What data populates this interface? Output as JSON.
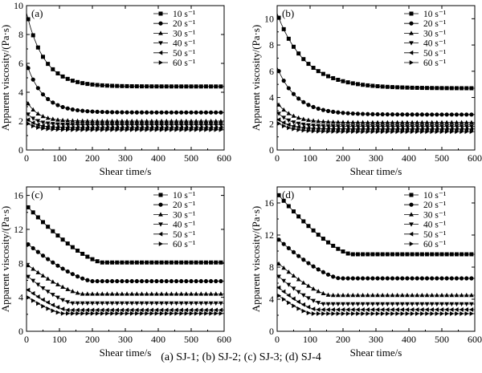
{
  "figure": {
    "caption": "(a) SJ-1; (b) SJ-2; (c) SJ-3; (d) SJ-4"
  },
  "chart_data": [
    {
      "type": "line",
      "panel_label": "(a)",
      "xlabel": "Shear time/s",
      "ylabel": "Apparent viscosity/(Pa·s)",
      "xlim": [
        0,
        600
      ],
      "ylim": [
        0,
        10
      ],
      "xticks": [
        0,
        100,
        200,
        300,
        400,
        500,
        600
      ],
      "yticks": [
        0,
        2,
        4,
        6,
        8,
        10
      ],
      "legend_position": "top-right",
      "grid": false,
      "series": [
        {
          "name": "10 s⁻¹",
          "marker": "square",
          "y0": 9.5,
          "yinf": 4.4,
          "tau": 55
        },
        {
          "name": "20 s⁻¹",
          "marker": "circle",
          "y0": 6.0,
          "yinf": 2.6,
          "tau": 50
        },
        {
          "name": "30 s⁻¹",
          "marker": "triangle-up",
          "y0": 3.4,
          "yinf": 2.0,
          "tau": 35
        },
        {
          "name": "40 s⁻¹",
          "marker": "triangle-down",
          "y0": 2.6,
          "yinf": 1.75,
          "tau": 30
        },
        {
          "name": "50 s⁻¹",
          "marker": "triangle-left",
          "y0": 2.2,
          "yinf": 1.55,
          "tau": 30
        },
        {
          "name": "60 s⁻¹",
          "marker": "triangle-right",
          "y0": 1.9,
          "yinf": 1.4,
          "tau": 30
        }
      ]
    },
    {
      "type": "line",
      "panel_label": "(b)",
      "xlabel": "Shear time/s",
      "ylabel": "Apparent viscosity/(Pa·s)",
      "xlim": [
        0,
        600
      ],
      "ylim": [
        0,
        11
      ],
      "xticks": [
        0,
        100,
        200,
        300,
        400,
        500,
        600
      ],
      "yticks": [
        0,
        2,
        4,
        6,
        8,
        10
      ],
      "legend_position": "top-right",
      "grid": false,
      "series": [
        {
          "name": "10 s⁻¹",
          "marker": "square",
          "y0": 10.4,
          "yinf": 4.7,
          "tau": 85
        },
        {
          "name": "20 s⁻¹",
          "marker": "circle",
          "y0": 6.3,
          "yinf": 2.7,
          "tau": 60
        },
        {
          "name": "30 s⁻¹",
          "marker": "triangle-up",
          "y0": 3.6,
          "yinf": 2.1,
          "tau": 45
        },
        {
          "name": "40 s⁻¹",
          "marker": "triangle-down",
          "y0": 2.9,
          "yinf": 1.8,
          "tau": 40
        },
        {
          "name": "50 s⁻¹",
          "marker": "triangle-left",
          "y0": 2.4,
          "yinf": 1.6,
          "tau": 40
        },
        {
          "name": "60 s⁻¹",
          "marker": "triangle-right",
          "y0": 2.1,
          "yinf": 1.4,
          "tau": 40
        }
      ]
    },
    {
      "type": "line",
      "panel_label": "(c)",
      "xlabel": "Shear time/s",
      "ylabel": "Apparent viscosity/(Pa·s)",
      "xlim": [
        0,
        600
      ],
      "ylim": [
        0,
        17
      ],
      "xticks": [
        0,
        100,
        200,
        300,
        400,
        500,
        600
      ],
      "yticks": [
        0,
        4,
        8,
        12,
        16
      ],
      "legend_position": "top-right",
      "grid": false,
      "series": [
        {
          "name": "10 s⁻¹",
          "marker": "square",
          "y0": 14.8,
          "yinf": 8.1,
          "tbreak": 230
        },
        {
          "name": "20 s⁻¹",
          "marker": "circle",
          "y0": 10.4,
          "yinf": 5.9,
          "tbreak": 200
        },
        {
          "name": "30 s⁻¹",
          "marker": "triangle-up",
          "y0": 7.9,
          "yinf": 4.4,
          "tbreak": 170
        },
        {
          "name": "40 s⁻¹",
          "marker": "triangle-down",
          "y0": 6.6,
          "yinf": 3.3,
          "tbreak": 140
        },
        {
          "name": "50 s⁻¹",
          "marker": "triangle-left",
          "y0": 5.0,
          "yinf": 2.5,
          "tbreak": 125
        },
        {
          "name": "60 s⁻¹",
          "marker": "triangle-right",
          "y0": 4.1,
          "yinf": 2.1,
          "tbreak": 110
        }
      ]
    },
    {
      "type": "line",
      "panel_label": "(d)",
      "xlabel": "Shear time/s",
      "ylabel": "Apparent viscosity/(Pa·s)",
      "xlim": [
        0,
        600
      ],
      "ylim": [
        0,
        18
      ],
      "xticks": [
        0,
        100,
        200,
        300,
        400,
        500,
        600
      ],
      "yticks": [
        0,
        4,
        8,
        12,
        16
      ],
      "legend_position": "top-right",
      "grid": false,
      "series": [
        {
          "name": "10 s⁻¹",
          "marker": "square",
          "y0": 17.2,
          "yinf": 9.6,
          "tbreak": 225
        },
        {
          "name": "20 s⁻¹",
          "marker": "circle",
          "y0": 11.6,
          "yinf": 6.6,
          "tbreak": 190
        },
        {
          "name": "30 s⁻¹",
          "marker": "triangle-up",
          "y0": 8.6,
          "yinf": 4.5,
          "tbreak": 160
        },
        {
          "name": "40 s⁻¹",
          "marker": "triangle-down",
          "y0": 7.0,
          "yinf": 3.4,
          "tbreak": 140
        },
        {
          "name": "50 s⁻¹",
          "marker": "triangle-left",
          "y0": 5.6,
          "yinf": 2.7,
          "tbreak": 120
        },
        {
          "name": "60 s⁻¹",
          "marker": "triangle-right",
          "y0": 4.6,
          "yinf": 2.2,
          "tbreak": 105
        }
      ]
    }
  ]
}
